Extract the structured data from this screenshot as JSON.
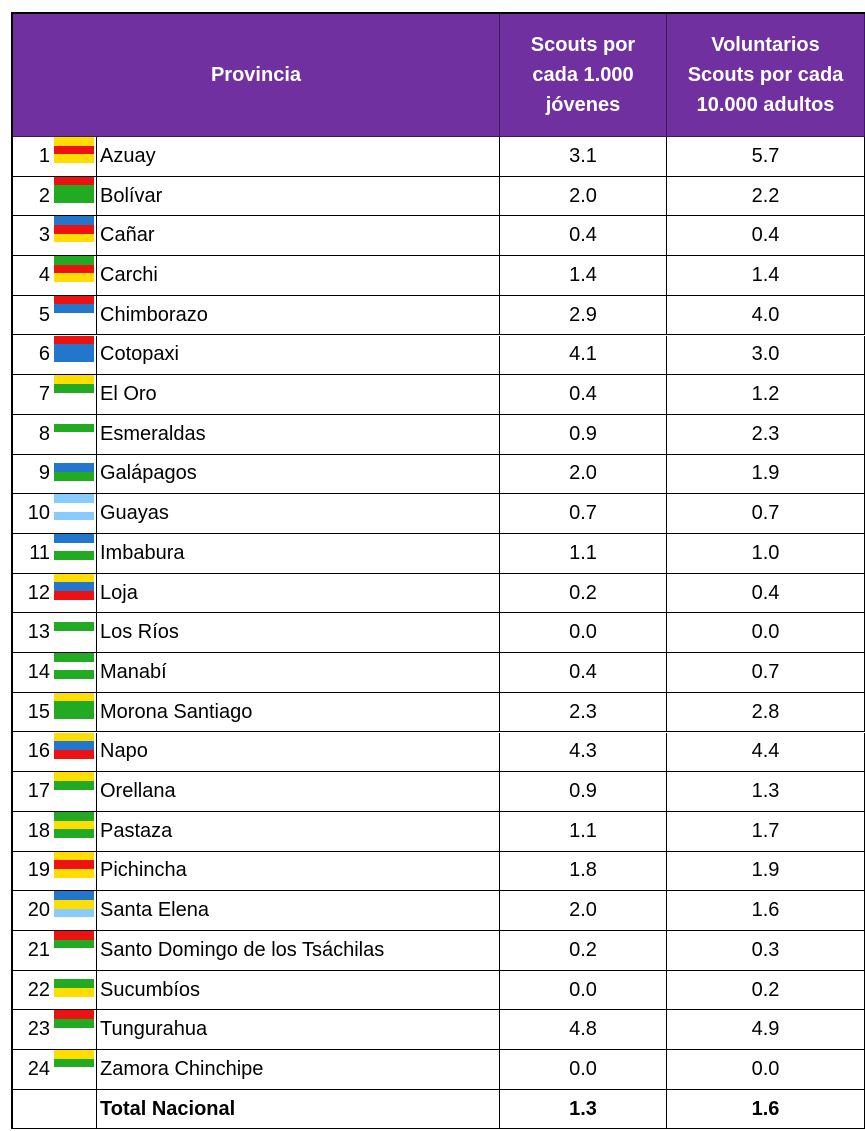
{
  "table": {
    "header": [
      "Provincia",
      [
        "Scouts por",
        "cada 1.000",
        "jóvenes"
      ],
      [
        "Voluntarios",
        "Scouts por cada",
        "10.000 adultos"
      ]
    ],
    "rows": [
      [
        "1",
        "Azuay",
        "3.1",
        "5.7"
      ],
      [
        "2",
        "Bolívar",
        "2.0",
        "2.2"
      ],
      [
        "3",
        "Cañar",
        "0.4",
        "0.4"
      ],
      [
        "4",
        "Carchi",
        "1.4",
        "1.4"
      ],
      [
        "5",
        "Chimborazo",
        "2.9",
        "4.0"
      ],
      [
        "6",
        "Cotopaxi",
        "4.1",
        "3.0"
      ],
      [
        "7",
        "El Oro",
        "0.4",
        "1.2"
      ],
      [
        "8",
        "Esmeraldas",
        "0.9",
        "2.3"
      ],
      [
        "9",
        "Galápagos",
        "2.0",
        "1.9"
      ],
      [
        "10",
        "Guayas",
        "0.7",
        "0.7"
      ],
      [
        "11",
        "Imbabura",
        "1.1",
        "1.0"
      ],
      [
        "12",
        "Loja",
        "0.2",
        "0.4"
      ],
      [
        "13",
        "Los Ríos",
        "0.0",
        "0.0"
      ],
      [
        "14",
        "Manabí",
        "0.4",
        "0.7"
      ],
      [
        "15",
        "Morona Santiago",
        "2.3",
        "2.8"
      ],
      [
        "16",
        "Napo",
        "4.3",
        "4.4"
      ],
      [
        "17",
        "Orellana",
        "0.9",
        "1.3"
      ],
      [
        "18",
        "Pastaza",
        "1.1",
        "1.7"
      ],
      [
        "19",
        "Pichincha",
        "1.8",
        "1.9"
      ],
      [
        "20",
        "Santa Elena",
        "2.0",
        "1.6"
      ],
      [
        "21",
        "Santo Domingo de los Tsáchilas",
        "0.2",
        "0.3"
      ],
      [
        "22",
        "Sucumbíos",
        "0.0",
        "0.2"
      ],
      [
        "23",
        "Tungurahua",
        "4.8",
        "4.9"
      ],
      [
        "24",
        "Zamora Chinchipe",
        "0.0",
        "0.0"
      ]
    ],
    "total": [
      "Total Nacional",
      "1.3",
      "1.6"
    ]
  }
}
